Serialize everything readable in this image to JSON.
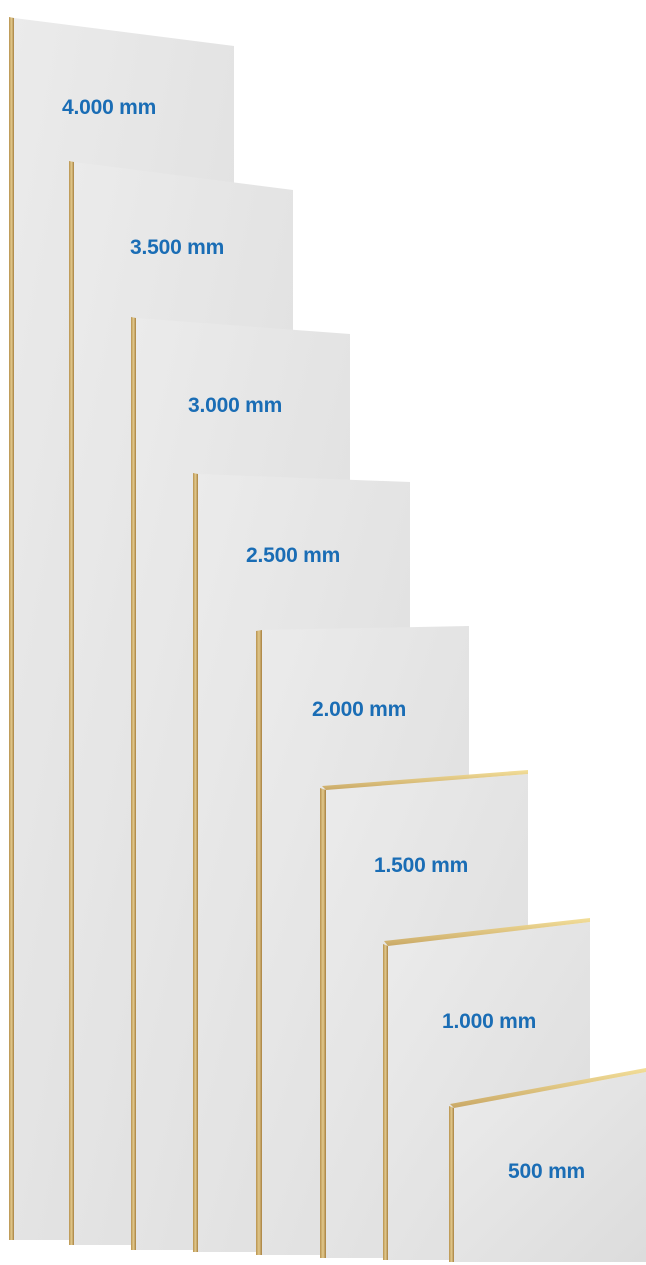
{
  "accent_color": "#1a6db5",
  "panel_color": "#e4e4e4",
  "edge_color": "#c9a866",
  "panels": [
    {
      "label": "4.000 mm",
      "length_mm": 4000
    },
    {
      "label": "3.500 mm",
      "length_mm": 3500
    },
    {
      "label": "3.000 mm",
      "length_mm": 3000
    },
    {
      "label": "2.500 mm",
      "length_mm": 2500
    },
    {
      "label": "2.000 mm",
      "length_mm": 2000
    },
    {
      "label": "1.500 mm",
      "length_mm": 1500
    },
    {
      "label": "1.000 mm",
      "length_mm": 1000
    },
    {
      "label": "500 mm",
      "length_mm": 500
    }
  ]
}
